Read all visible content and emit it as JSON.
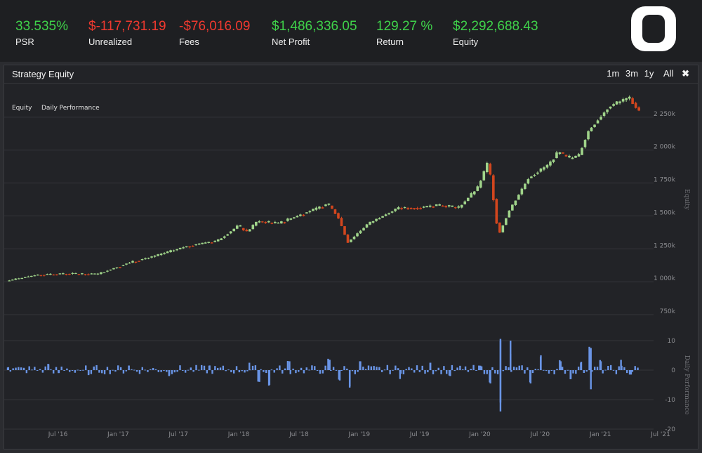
{
  "stats": [
    {
      "value": "33.535%",
      "label": "PSR",
      "tone": "pos"
    },
    {
      "value": "$-117,731.19",
      "label": "Unrealized",
      "tone": "neg"
    },
    {
      "value": "-$76,016.09",
      "label": "Fees",
      "tone": "neg"
    },
    {
      "value": "$1,486,336.05",
      "label": "Net Profit",
      "tone": "pos"
    },
    {
      "value": "129.27 %",
      "label": "Return",
      "tone": "pos"
    },
    {
      "value": "$2,292,688.43",
      "label": "Equity",
      "tone": "pos"
    }
  ],
  "panel": {
    "title": "Strategy Equity",
    "zoom": [
      "1m",
      "3m",
      "1y",
      "All"
    ],
    "close_icon": "close-icon"
  },
  "logo_icon": "brand-logo-icon",
  "colors": {
    "up": "#a0d48a",
    "down": "#d2461e",
    "bar": "#6a95e6",
    "grid": "#34353a"
  },
  "chart_data": {
    "type": "candlestick",
    "legend": [
      "Equity",
      "Daily Performance"
    ],
    "x_ticks": [
      "Jul '16",
      "Jan '17",
      "Jul '17",
      "Jan '18",
      "Jul '18",
      "Jan '19",
      "Jul '19",
      "Jan '20",
      "Jul '20",
      "Jan '21",
      "Jul '21"
    ],
    "x_range": [
      "2016-02",
      "2021-07"
    ],
    "equity": {
      "ylabel": "Equity",
      "ylim": [
        750000,
        2500000
      ],
      "y_ticks": [
        "750k",
        "1 000k",
        "1 250k",
        "1 500k",
        "1 750k",
        "2 000k",
        "2 250k"
      ],
      "path": [
        [
          "2016-02",
          1005000
        ],
        [
          "2016-05",
          1050000
        ],
        [
          "2016-08",
          1060000
        ],
        [
          "2016-11",
          1055000
        ],
        [
          "2017-02",
          1140000
        ],
        [
          "2017-05",
          1200000
        ],
        [
          "2017-08",
          1270000
        ],
        [
          "2017-11",
          1310000
        ],
        [
          "2018-01",
          1420000
        ],
        [
          "2018-02",
          1380000
        ],
        [
          "2018-03",
          1460000
        ],
        [
          "2018-05",
          1440000
        ],
        [
          "2018-08",
          1530000
        ],
        [
          "2018-10",
          1590000
        ],
        [
          "2018-11",
          1500000
        ],
        [
          "2018-12",
          1300000
        ],
        [
          "2019-02",
          1440000
        ],
        [
          "2019-05",
          1560000
        ],
        [
          "2019-07",
          1560000
        ],
        [
          "2019-09",
          1580000
        ],
        [
          "2019-11",
          1560000
        ],
        [
          "2020-01",
          1720000
        ],
        [
          "2020-02",
          1920000
        ],
        [
          "2020-03",
          1350000
        ],
        [
          "2020-04",
          1530000
        ],
        [
          "2020-06",
          1790000
        ],
        [
          "2020-08",
          1890000
        ],
        [
          "2020-09",
          1990000
        ],
        [
          "2020-10",
          1930000
        ],
        [
          "2020-11",
          1960000
        ],
        [
          "2020-12",
          2150000
        ],
        [
          "2021-02",
          2330000
        ],
        [
          "2021-04",
          2400000
        ],
        [
          "2021-05",
          2290000
        ]
      ]
    },
    "daily_performance": {
      "ylabel": "Daily Performance",
      "ylim": [
        -20,
        10
      ],
      "y_ticks": [
        "10",
        "0",
        "-10",
        "-20"
      ],
      "events": [
        [
          "2016-02",
          1.0
        ],
        [
          "2016-06",
          2.0
        ],
        [
          "2016-07",
          -1.0
        ],
        [
          "2016-10",
          -1.5
        ],
        [
          "2017-02",
          1.5
        ],
        [
          "2017-06",
          -2.0
        ],
        [
          "2017-10",
          1.5
        ],
        [
          "2018-02",
          2.5
        ],
        [
          "2018-03",
          -4.0
        ],
        [
          "2018-04",
          -5.0
        ],
        [
          "2018-06",
          3.0
        ],
        [
          "2018-10",
          3.5
        ],
        [
          "2018-11",
          -3.5
        ],
        [
          "2018-12",
          -5.5
        ],
        [
          "2019-01",
          3.0
        ],
        [
          "2019-05",
          -3.0
        ],
        [
          "2019-08",
          2.5
        ],
        [
          "2019-10",
          -2.0
        ],
        [
          "2020-01",
          1.5
        ],
        [
          "2020-02",
          -4.5
        ],
        [
          "2020-03",
          -14.0
        ],
        [
          "2020-03",
          -11.0
        ],
        [
          "2020-03",
          10.0
        ],
        [
          "2020-04",
          10.0
        ],
        [
          "2020-04",
          5.5
        ],
        [
          "2020-06",
          -4.5
        ],
        [
          "2020-07",
          4.5
        ],
        [
          "2020-09",
          3.0
        ],
        [
          "2020-10",
          -3.0
        ],
        [
          "2020-11",
          2.5
        ],
        [
          "2020-12",
          -6.5
        ],
        [
          "2020-12",
          7.5
        ],
        [
          "2021-01",
          3.0
        ],
        [
          "2021-03",
          3.5
        ],
        [
          "2021-04",
          -1.5
        ]
      ]
    }
  }
}
